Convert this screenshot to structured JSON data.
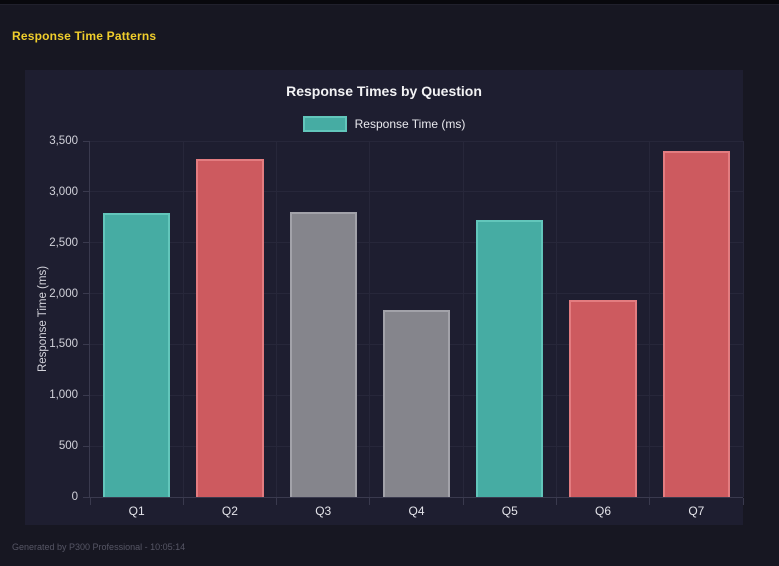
{
  "page": {
    "header_title": "Response Time Patterns",
    "footer_text": "Generated by P300 Professional - 10:05:14"
  },
  "colors": {
    "page_background": "#171722",
    "card_background": "#1e1e30",
    "header_yellow": "#f0ce2c",
    "teal": "#46aca3",
    "teal_border": "#62c6bb",
    "red": "#cd5a5f",
    "red_border": "#e37c80",
    "gray": "#85858c",
    "gray_border": "#a2a2a9"
  },
  "chart_data": {
    "type": "bar",
    "title": "Response Times by Question",
    "legend_label": "Response Time (ms)",
    "legend_position": "top",
    "categories": [
      "Q1",
      "Q2",
      "Q3",
      "Q4",
      "Q5",
      "Q6",
      "Q7"
    ],
    "series": [
      {
        "name": "Response Time (ms)",
        "values": [
          2790,
          3320,
          2800,
          1840,
          2720,
          1940,
          3400
        ]
      }
    ],
    "bar_fill_colors": [
      "#46aca3",
      "#cd5a5f",
      "#85858c",
      "#85858c",
      "#46aca3",
      "#cd5a5f",
      "#cd5a5f"
    ],
    "bar_border_colors": [
      "#62c6bb",
      "#e37c80",
      "#a2a2a9",
      "#a2a2a9",
      "#62c6bb",
      "#e37c80",
      "#e37c80"
    ],
    "xlabel": "",
    "ylabel": "Response Time (ms)",
    "ylim": [
      0,
      3500
    ],
    "ytick_step": 500,
    "ytick_labels": [
      "0",
      "500",
      "1,000",
      "1,500",
      "2,000",
      "2,500",
      "3,000",
      "3,500"
    ],
    "grid": true
  }
}
